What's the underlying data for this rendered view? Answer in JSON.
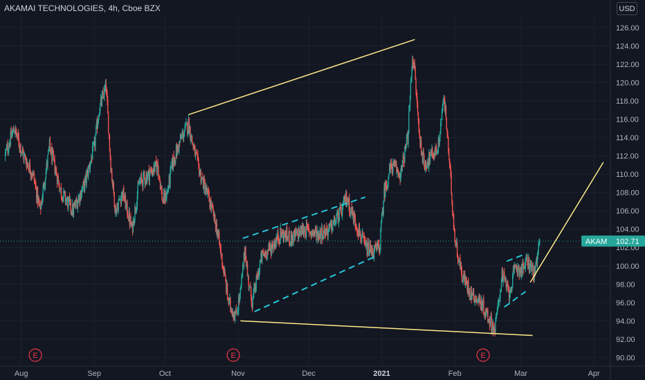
{
  "header": {
    "title": "AKAMAI TECHNOLOGIES, 4h, Cboe BZX",
    "currency": "USD"
  },
  "chart_data": {
    "type": "candlestick",
    "symbol": "AKAM",
    "interval": "4h",
    "exchange": "Cboe BZX",
    "last_price": "102.71",
    "ylim": [
      89.2,
      127.2
    ],
    "y_ticks": [
      "126.00",
      "124.00",
      "122.00",
      "120.00",
      "118.00",
      "116.00",
      "114.00",
      "112.00",
      "110.00",
      "108.00",
      "106.00",
      "104.00",
      "102.00",
      "100.00",
      "98.00",
      "96.00",
      "94.00",
      "92.00",
      "90.00"
    ],
    "x_ticks": [
      {
        "label": "Aug",
        "day": -3
      },
      {
        "label": "Sep",
        "day": 28
      },
      {
        "label": "Oct",
        "day": 58
      },
      {
        "label": "Nov",
        "day": 89
      },
      {
        "label": "Dec",
        "day": 119
      },
      {
        "label": "2021",
        "day": 150
      },
      {
        "label": "Feb",
        "day": 181
      },
      {
        "label": "Mar",
        "day": 209
      },
      {
        "label": "Apr",
        "day": 240
      }
    ],
    "earnings_markers": [
      {
        "label": "E",
        "day": 3
      },
      {
        "label": "E",
        "day": 87
      },
      {
        "label": "E",
        "day": 193
      }
    ],
    "colors": {
      "up": "#26a69a",
      "down": "#ef5350",
      "trendline": "#ffeb8a",
      "channel": "#26c6da",
      "price_tag": "#26a69a",
      "background": "#131722",
      "grid": "#1e2230"
    },
    "anchors": [
      [
        -10,
        112
      ],
      [
        -6,
        115
      ],
      [
        -2,
        112
      ],
      [
        2,
        110
      ],
      [
        5,
        106
      ],
      [
        9,
        113
      ],
      [
        14,
        108
      ],
      [
        19,
        106
      ],
      [
        24,
        109
      ],
      [
        28,
        113
      ],
      [
        30,
        117
      ],
      [
        33,
        119.5
      ],
      [
        35,
        111
      ],
      [
        37,
        106
      ],
      [
        40,
        108
      ],
      [
        44,
        104
      ],
      [
        47,
        109
      ],
      [
        51,
        110
      ],
      [
        55,
        111
      ],
      [
        57,
        107
      ],
      [
        59,
        108
      ],
      [
        61,
        111
      ],
      [
        65,
        114
      ],
      [
        68,
        115.5
      ],
      [
        70,
        113
      ],
      [
        73,
        110
      ],
      [
        77,
        107
      ],
      [
        80,
        104
      ],
      [
        82,
        101
      ],
      [
        85,
        96
      ],
      [
        88,
        94.5
      ],
      [
        90,
        97
      ],
      [
        92,
        102
      ],
      [
        93,
        99
      ],
      [
        95,
        96
      ],
      [
        99,
        101
      ],
      [
        103,
        102
      ],
      [
        107,
        103.5
      ],
      [
        112,
        103
      ],
      [
        117,
        104
      ],
      [
        123,
        103.5
      ],
      [
        128,
        104
      ],
      [
        133,
        106
      ],
      [
        135,
        107.5
      ],
      [
        137,
        106
      ],
      [
        140,
        104
      ],
      [
        143,
        102
      ],
      [
        146,
        101.5
      ],
      [
        149,
        102
      ],
      [
        151,
        108
      ],
      [
        154,
        111
      ],
      [
        158,
        110
      ],
      [
        161,
        114
      ],
      [
        163,
        123
      ],
      [
        164,
        121
      ],
      [
        166,
        114
      ],
      [
        168,
        111
      ],
      [
        171,
        112
      ],
      [
        174,
        113
      ],
      [
        176,
        118
      ],
      [
        177,
        117
      ],
      [
        179,
        110
      ],
      [
        181,
        103
      ],
      [
        184,
        99
      ],
      [
        188,
        97
      ],
      [
        192,
        96
      ],
      [
        196,
        94
      ],
      [
        198,
        93
      ],
      [
        201,
        99
      ],
      [
        204,
        97
      ],
      [
        207,
        100
      ],
      [
        209,
        99.5
      ],
      [
        212,
        100.5
      ],
      [
        215,
        99
      ],
      [
        217,
        102.7
      ]
    ],
    "trendlines": [
      {
        "style": "solid",
        "color": "trendline",
        "from": [
          68,
          116.5
        ],
        "to": [
          164,
          124.7
        ]
      },
      {
        "style": "solid",
        "color": "trendline",
        "from": [
          90,
          94
        ],
        "to": [
          214,
          92.4
        ]
      },
      {
        "style": "solid",
        "color": "trendline",
        "from": [
          213,
          98.2
        ],
        "to": [
          244,
          111.3
        ]
      },
      {
        "style": "dashed",
        "color": "channel",
        "from": [
          91,
          103
        ],
        "to": [
          143,
          107.5
        ]
      },
      {
        "style": "dashed",
        "color": "channel",
        "from": [
          96,
          95
        ],
        "to": [
          147,
          101
        ]
      },
      {
        "style": "dashed",
        "color": "channel",
        "from": [
          203,
          100.5
        ],
        "to": [
          210,
          101.2
        ]
      },
      {
        "style": "dashed",
        "color": "channel",
        "from": [
          202,
          95.5
        ],
        "to": [
          211,
          97.2
        ]
      }
    ]
  }
}
